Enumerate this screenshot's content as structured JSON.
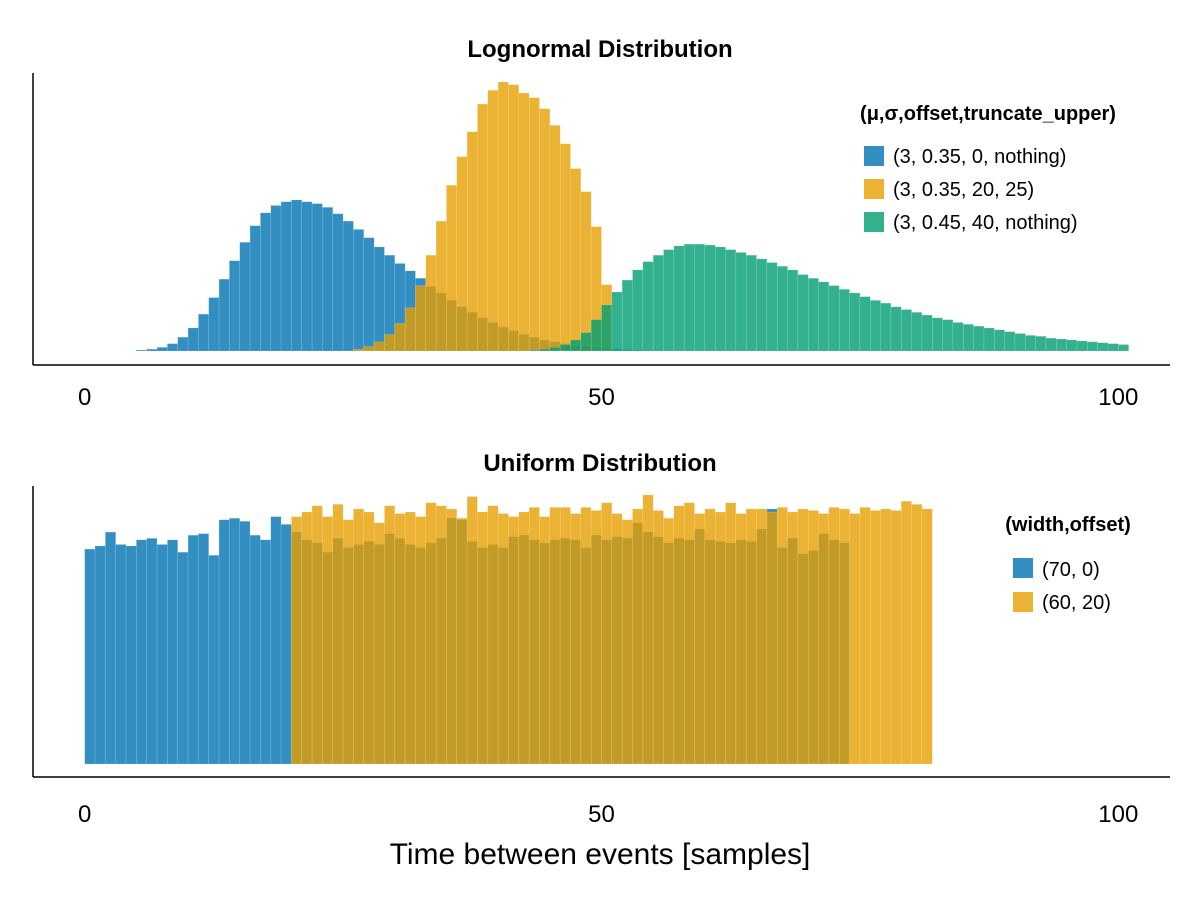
{
  "figure": {
    "xlabel": "Time between events [samples]"
  },
  "colors": {
    "blue": "#0072B2",
    "orange": "#E69F00",
    "green": "#009E73"
  },
  "chart_data": [
    {
      "type": "bar",
      "title": "Lognormal Distribution",
      "xlabel": "",
      "ylabel": "",
      "xlim": [
        -5,
        105
      ],
      "xticks": [
        0,
        50,
        100
      ],
      "x_tick_labels": [
        "0",
        "50",
        "100"
      ],
      "bin_width": 1,
      "grid": false,
      "legend_placement": "top-right",
      "legend_title": "(μ,σ,offset,truncate_upper)",
      "series": [
        {
          "name": "(3, 0.35, 0, nothing)",
          "color": "blue",
          "x_start": 5,
          "values": [
            0.001,
            0.002,
            0.004,
            0.008,
            0.015,
            0.025,
            0.04,
            0.058,
            0.078,
            0.098,
            0.118,
            0.136,
            0.15,
            0.158,
            0.162,
            0.164,
            0.162,
            0.16,
            0.156,
            0.149,
            0.141,
            0.132,
            0.123,
            0.113,
            0.104,
            0.095,
            0.087,
            0.079,
            0.07,
            0.063,
            0.055,
            0.048,
            0.042,
            0.036,
            0.031,
            0.026,
            0.022,
            0.018,
            0.015,
            0.012,
            0.01,
            0.008,
            0.006,
            0.005,
            0.004,
            0.003,
            0.002,
            0.001,
            0.001,
            0.0006,
            0.0004,
            0.0002,
            0.0001
          ]
        },
        {
          "name": "(3, 0.35, 20, 25)",
          "color": "orange",
          "x_start": 26,
          "values": [
            0.002,
            0.005,
            0.01,
            0.018,
            0.03,
            0.047,
            0.071,
            0.104,
            0.141,
            0.18,
            0.211,
            0.238,
            0.268,
            0.283,
            0.292,
            0.289,
            0.28,
            0.275,
            0.263,
            0.245,
            0.225,
            0.198,
            0.173,
            0.135,
            0.072
          ]
        },
        {
          "name": "(3, 0.45, 40, nothing)",
          "color": "green",
          "x_start": 43,
          "values": [
            0.001,
            0.002,
            0.004,
            0.007,
            0.012,
            0.02,
            0.034,
            0.05,
            0.064,
            0.077,
            0.088,
            0.097,
            0.104,
            0.11,
            0.114,
            0.116,
            0.116,
            0.115,
            0.113,
            0.11,
            0.107,
            0.104,
            0.1,
            0.096,
            0.092,
            0.088,
            0.083,
            0.079,
            0.075,
            0.071,
            0.067,
            0.063,
            0.059,
            0.055,
            0.052,
            0.048,
            0.045,
            0.042,
            0.039,
            0.036,
            0.034,
            0.031,
            0.029,
            0.027,
            0.025,
            0.023,
            0.021,
            0.019,
            0.017,
            0.016,
            0.014,
            0.013,
            0.012,
            0.011,
            0.01,
            0.009,
            0.008,
            0.007
          ]
        }
      ]
    },
    {
      "type": "bar",
      "title": "Uniform Distribution",
      "xlabel": "Time between events [samples]",
      "ylabel": "",
      "xlim": [
        -5,
        105
      ],
      "xticks": [
        0,
        50,
        100
      ],
      "x_tick_labels": [
        "0",
        "50",
        "100"
      ],
      "bin_width": 1,
      "grid": false,
      "legend_placement": "top-right",
      "legend_title": "(width,offset)",
      "series": [
        {
          "name": "(70, 0)",
          "color": "blue",
          "x_start": 0,
          "values": [
            0.0139,
            0.0141,
            0.015,
            0.0142,
            0.0141,
            0.0145,
            0.0146,
            0.0142,
            0.0145,
            0.0137,
            0.0148,
            0.0149,
            0.0135,
            0.0158,
            0.0159,
            0.0157,
            0.0148,
            0.0145,
            0.016,
            0.0155,
            0.015,
            0.0145,
            0.0143,
            0.0137,
            0.0146,
            0.014,
            0.0142,
            0.0144,
            0.0142,
            0.0149,
            0.0146,
            0.0142,
            0.014,
            0.0143,
            0.0146,
            0.0159,
            0.0158,
            0.0144,
            0.014,
            0.0142,
            0.014,
            0.0147,
            0.0148,
            0.0145,
            0.0143,
            0.0145,
            0.0146,
            0.0145,
            0.014,
            0.0148,
            0.0145,
            0.0147,
            0.0146,
            0.0156,
            0.015,
            0.0147,
            0.0143,
            0.0146,
            0.0145,
            0.0152,
            0.0145,
            0.0144,
            0.0143,
            0.0145,
            0.0144,
            0.0152,
            0.0165,
            0.014,
            0.0146,
            0.0136,
            0.0138,
            0.0149,
            0.0145,
            0.0143
          ]
        },
        {
          "name": "(60, 20)",
          "color": "orange",
          "x_start": 20,
          "values": [
            0.016,
            0.0163,
            0.0167,
            0.016,
            0.0168,
            0.0158,
            0.0165,
            0.0163,
            0.0156,
            0.0167,
            0.0162,
            0.0163,
            0.016,
            0.0169,
            0.0167,
            0.0165,
            0.0159,
            0.0173,
            0.0163,
            0.0167,
            0.0162,
            0.016,
            0.0163,
            0.0166,
            0.016,
            0.0166,
            0.0166,
            0.0162,
            0.0166,
            0.0164,
            0.0169,
            0.0162,
            0.0158,
            0.0165,
            0.0174,
            0.0164,
            0.0159,
            0.0167,
            0.0169,
            0.0162,
            0.0165,
            0.0163,
            0.0169,
            0.0162,
            0.0165,
            0.0165,
            0.0163,
            0.0166,
            0.0163,
            0.0165,
            0.0164,
            0.0162,
            0.0166,
            0.0165,
            0.0162,
            0.0166,
            0.0164,
            0.0165,
            0.0164,
            0.017,
            0.0168,
            0.0165
          ]
        }
      ]
    }
  ]
}
